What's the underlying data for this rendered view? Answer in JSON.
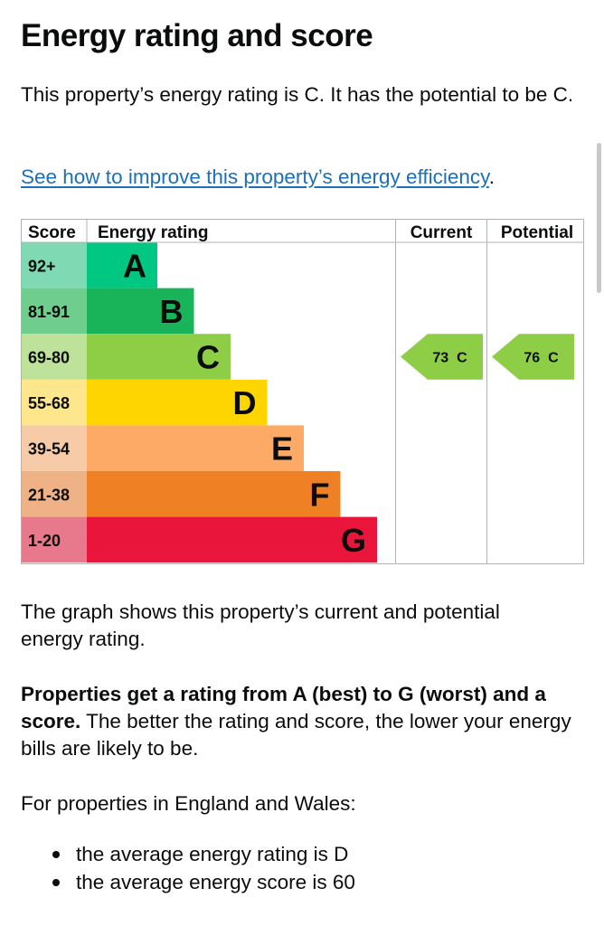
{
  "heading": "Energy rating and score",
  "intro": "This property’s energy rating is C. It has the potential to be C.",
  "improve_link": "See how to improve this property’s energy efficiency",
  "improve_suffix": ".",
  "chart_data": {
    "type": "table",
    "headers": {
      "score": "Score",
      "rating": "Energy rating",
      "current": "Current",
      "potential": "Potential"
    },
    "bands": [
      {
        "band": "A",
        "range": "92+",
        "color": "#00c781",
        "score_bg": "#7fd9b3"
      },
      {
        "band": "B",
        "range": "81-91",
        "color": "#19b459",
        "score_bg": "#6fcd8e"
      },
      {
        "band": "C",
        "range": "69-80",
        "color": "#8dce46",
        "score_bg": "#bfe29a"
      },
      {
        "band": "D",
        "range": "55-68",
        "color": "#ffd500",
        "score_bg": "#fde68b"
      },
      {
        "band": "E",
        "range": "39-54",
        "color": "#fcaa65",
        "score_bg": "#f7cba7"
      },
      {
        "band": "F",
        "range": "21-38",
        "color": "#ef8023",
        "score_bg": "#eeb286"
      },
      {
        "band": "G",
        "range": "1-20",
        "color": "#e9153b",
        "score_bg": "#e8798c"
      }
    ],
    "current": {
      "score": 73,
      "band": "C",
      "label": "73  C"
    },
    "potential": {
      "score": 76,
      "band": "C",
      "label": "76  C"
    }
  },
  "graph_description": "The graph shows this property’s current and potential energy rating.",
  "ratings_info": {
    "bold": "Properties get a rating from A (best) to G (worst) and a score.",
    "rest": " The better the rating and score, the lower your energy bills are likely to be."
  },
  "region_text": "For properties in England and Wales:",
  "averages": [
    "the average energy rating is D",
    "the average energy score is 60"
  ]
}
